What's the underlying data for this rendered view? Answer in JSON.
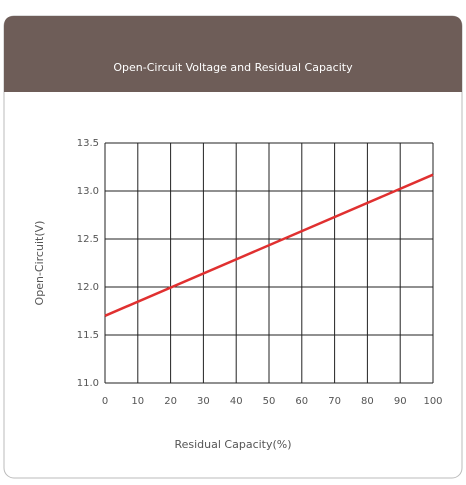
{
  "chart_data": {
    "type": "line",
    "title": "Open-Circuit Voltage and Residual Capacity",
    "x_label": "Residual Capacity(%)",
    "y_label": "Open-Circuit(V)",
    "x": [
      0,
      100
    ],
    "series": [
      {
        "name": "Open-Circuit Voltage",
        "color": "#e03030",
        "values": [
          11.7,
          13.17
        ]
      }
    ],
    "xlim": [
      0,
      100
    ],
    "xticks": [
      0,
      10,
      20,
      30,
      40,
      50,
      60,
      70,
      80,
      90,
      100
    ],
    "ylim": [
      11,
      13.5
    ],
    "yticks": [
      {
        "value": 11,
        "label": "11.0"
      },
      11.5,
      {
        "value": 12,
        "label": "12.0"
      },
      12.5,
      {
        "value": 13,
        "label": "13.0"
      },
      13.5
    ],
    "grid": true
  }
}
